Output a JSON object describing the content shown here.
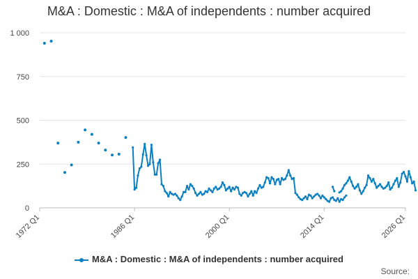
{
  "chart_data": {
    "type": "line",
    "title": "M&A : Domestic : M&A of independents : number acquired",
    "series_name": "M&A : Domestic : M&A of independents : number acquired",
    "color": "#0b7fbf",
    "xlabel": "",
    "ylabel": "",
    "ylim": [
      0,
      1000
    ],
    "yticks": [
      0,
      250,
      500,
      750,
      1000
    ],
    "ytick_labels": [
      "0",
      "250",
      "500",
      "750",
      "1 000"
    ],
    "xlim": [
      1972,
      2026
    ],
    "xticks": [
      1972,
      1986,
      2000,
      2014,
      2026
    ],
    "xtick_labels": [
      "1972 Q1",
      "1986 Q1",
      "2000 Q1",
      "2014 Q1",
      "2026 Q1"
    ],
    "annual_points": [
      {
        "x": 1972.7,
        "y": 940
      },
      {
        "x": 1973.7,
        "y": 952
      },
      {
        "x": 1974.7,
        "y": 370
      },
      {
        "x": 1975.7,
        "y": 202
      },
      {
        "x": 1976.7,
        "y": 245
      },
      {
        "x": 1977.7,
        "y": 375
      },
      {
        "x": 1978.7,
        "y": 445
      },
      {
        "x": 1979.7,
        "y": 420
      },
      {
        "x": 1980.7,
        "y": 370
      },
      {
        "x": 1981.7,
        "y": 330
      },
      {
        "x": 1982.7,
        "y": 302
      },
      {
        "x": 1983.7,
        "y": 307
      },
      {
        "x": 1984.7,
        "y": 402
      }
    ],
    "quarterly_segments": [
      {
        "x_start": 1985.75,
        "values": [
          345,
          105,
          115,
          185,
          225,
          235,
          305,
          365,
          300,
          240,
          250,
          360,
          260,
          190,
          190,
          255,
          275,
          135,
          125,
          95,
          85,
          65,
          90,
          80,
          75,
          80,
          70,
          55,
          45,
          65,
          90,
          90,
          125,
          105,
          135,
          125,
          110,
          85,
          70,
          80,
          90,
          75,
          80,
          95,
          90,
          110,
          100,
          90,
          110,
          120,
          105,
          110,
          120,
          145,
          130,
          100,
          110,
          120,
          95,
          115,
          105,
          120,
          115,
          80,
          70,
          85,
          90,
          85,
          65,
          80,
          95,
          70,
          95,
          85,
          110,
          130,
          115,
          120,
          145,
          175,
          170,
          140,
          175,
          165,
          135,
          160,
          165,
          135,
          170,
          160,
          165,
          185,
          215,
          185,
          165,
          170,
          85,
          75,
          60,
          50,
          45,
          55,
          65,
          50,
          75,
          70,
          55,
          65,
          75,
          80,
          70,
          55,
          70,
          60,
          50,
          40,
          35,
          55,
          60,
          45,
          40,
          55,
          35,
          50,
          45,
          60,
          70
        ]
      },
      {
        "x_start": 2015.25,
        "values": [
          120,
          95
        ]
      },
      {
        "x_start": 2016.25,
        "values": [
          88,
          95,
          110,
          130,
          140,
          155,
          175,
          150,
          125,
          110,
          120,
          135,
          100,
          80,
          95,
          115,
          130,
          185,
          170,
          150,
          165,
          140,
          115,
          125,
          135,
          120,
          110,
          115,
          125,
          145,
          105,
          115,
          135,
          155,
          170,
          120,
          145,
          195,
          205,
          180,
          150,
          210,
          175,
          140,
          150,
          100
        ]
      }
    ]
  },
  "legend": {
    "label": "M&A : Domestic : M&A of independents : number acquired"
  },
  "source_label": "Source:"
}
